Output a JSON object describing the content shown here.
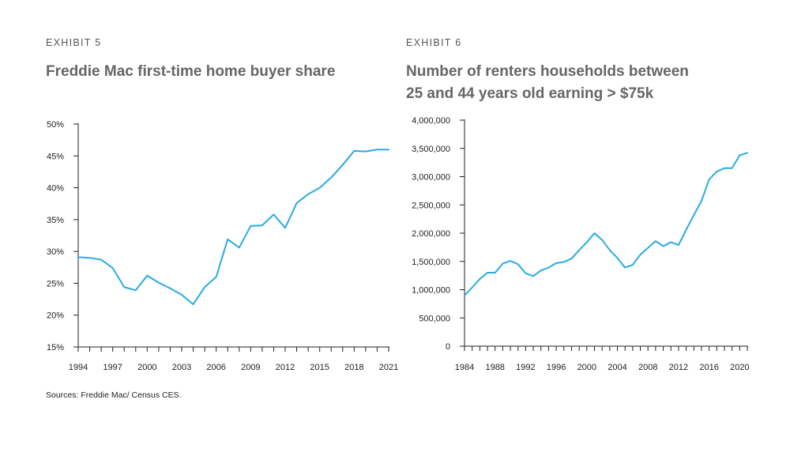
{
  "exhibits": [
    {
      "label": "EXHIBIT 5",
      "title": "Freddie Mac first-time home buyer share"
    },
    {
      "label": "EXHIBIT 6",
      "title_line1": "Number of renters households between",
      "title_line2": "25 and 44 years old earning > $75k"
    }
  ],
  "source": "Sources: Freddie Mac/ Census CES.",
  "colors": {
    "line": "#29abe2",
    "axis": "#222222"
  },
  "chart_data": [
    {
      "type": "line",
      "title": "Freddie Mac first-time home buyer share",
      "xlabel": "",
      "ylabel": "",
      "x": [
        1994,
        1995,
        1996,
        1997,
        1998,
        1999,
        2000,
        2001,
        2002,
        2003,
        2004,
        2005,
        2006,
        2007,
        2008,
        2009,
        2010,
        2011,
        2012,
        2013,
        2014,
        2015,
        2016,
        2017,
        2018,
        2019,
        2020,
        2021
      ],
      "series": [
        {
          "values": [
            29.1,
            29.0,
            28.7,
            27.4,
            24.4,
            23.9,
            26.2,
            25.1,
            24.2,
            23.2,
            21.7,
            24.4,
            26.0,
            31.9,
            30.6,
            34.0,
            34.1,
            35.8,
            33.7,
            37.6,
            39.0,
            40.0,
            41.6,
            43.6,
            45.8,
            45.7,
            46.0,
            46.0
          ]
        }
      ],
      "xlim": [
        1994,
        2021
      ],
      "ylim": [
        15,
        50
      ],
      "x_tick_labels": [
        "1994",
        "1997",
        "2000",
        "2003",
        "2006",
        "2009",
        "2012",
        "2015",
        "2018",
        "2021"
      ],
      "y_tick_labels": [
        "15%",
        "20%",
        "25%",
        "30%",
        "35%",
        "40%",
        "45%",
        "50%"
      ],
      "y_ticks": [
        15,
        20,
        25,
        30,
        35,
        40,
        45,
        50
      ],
      "grid": false,
      "legend": "none"
    },
    {
      "type": "line",
      "title": "Number of renters households between 25 and 44 years old earning > $75k",
      "xlabel": "",
      "ylabel": "",
      "x": [
        1984,
        1985,
        1986,
        1987,
        1988,
        1989,
        1990,
        1991,
        1992,
        1993,
        1994,
        1995,
        1996,
        1997,
        1998,
        1999,
        2000,
        2001,
        2002,
        2003,
        2004,
        2005,
        2006,
        2007,
        2008,
        2009,
        2010,
        2011,
        2012,
        2013,
        2014,
        2015,
        2016,
        2017,
        2018,
        2019,
        2020,
        2021
      ],
      "series": [
        {
          "values": [
            900000,
            1040000,
            1190000,
            1300000,
            1300000,
            1460000,
            1510000,
            1450000,
            1290000,
            1240000,
            1340000,
            1390000,
            1470000,
            1490000,
            1550000,
            1700000,
            1840000,
            2000000,
            1880000,
            1700000,
            1560000,
            1390000,
            1440000,
            1620000,
            1740000,
            1860000,
            1770000,
            1840000,
            1790000,
            2060000,
            2320000,
            2570000,
            2950000,
            3090000,
            3150000,
            3150000,
            3380000,
            3420000
          ]
        }
      ],
      "xlim": [
        1984,
        2021
      ],
      "ylim": [
        0,
        4000000
      ],
      "x_tick_labels": [
        "1984",
        "1988",
        "1992",
        "1996",
        "2000",
        "2004",
        "2008",
        "2012",
        "2016",
        "2020"
      ],
      "x_ticks_major": [
        1984,
        1988,
        1992,
        1996,
        2000,
        2004,
        2008,
        2012,
        2016,
        2020
      ],
      "y_tick_labels": [
        "0",
        "500,000",
        "1,000,000",
        "1,500,000",
        "2,000,000",
        "2,500,000",
        "3,000,000",
        "3,500,000",
        "4,000,000"
      ],
      "y_ticks": [
        0,
        500000,
        1000000,
        1500000,
        2000000,
        2500000,
        3000000,
        3500000,
        4000000
      ],
      "grid": false,
      "legend": "none"
    }
  ]
}
